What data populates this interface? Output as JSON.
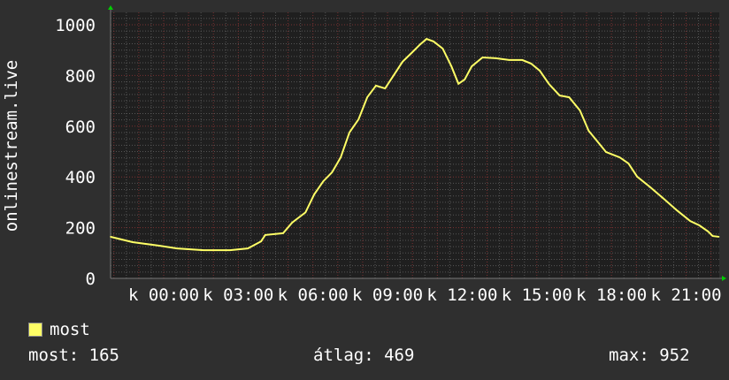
{
  "chart_data": {
    "type": "line",
    "ylabel": "onlinestream.live",
    "ylim": [
      0,
      1050
    ],
    "yticks": [
      0,
      200,
      400,
      600,
      800,
      1000
    ],
    "xlim": [
      "21:52",
      "22:20"
    ],
    "xticks": [
      {
        "time": "00:00",
        "label": "k 00:00"
      },
      {
        "time": "03:00",
        "label": "k 03:00"
      },
      {
        "time": "06:00",
        "label": "k 06:00"
      },
      {
        "time": "09:00",
        "label": "k 09:00"
      },
      {
        "time": "12:00",
        "label": "k 12:00"
      },
      {
        "time": "15:00",
        "label": "k 15:00"
      },
      {
        "time": "18:00",
        "label": "k 18:00"
      },
      {
        "time": "21:00",
        "label": "k 21:00"
      }
    ],
    "grid": true,
    "series": [
      {
        "name": "most",
        "color": "#ffff66",
        "points": [
          [
            "21:52",
            164
          ],
          [
            "22:45",
            143
          ],
          [
            "23:49",
            129
          ],
          [
            "00:32",
            118
          ],
          [
            "01:36",
            111
          ],
          [
            "02:40",
            111
          ],
          [
            "03:23",
            118
          ],
          [
            "03:55",
            146
          ],
          [
            "04:05",
            171
          ],
          [
            "04:48",
            178
          ],
          [
            "05:10",
            220
          ],
          [
            "05:42",
            260
          ],
          [
            "06:03",
            331
          ],
          [
            "06:25",
            383
          ],
          [
            "06:46",
            418
          ],
          [
            "07:07",
            477
          ],
          [
            "07:28",
            575
          ],
          [
            "07:50",
            627
          ],
          [
            "08:11",
            714
          ],
          [
            "08:32",
            760
          ],
          [
            "08:54",
            749
          ],
          [
            "09:15",
            801
          ],
          [
            "09:36",
            854
          ],
          [
            "09:58",
            889
          ],
          [
            "10:19",
            923
          ],
          [
            "10:34",
            944
          ],
          [
            "10:51",
            934
          ],
          [
            "11:13",
            906
          ],
          [
            "11:34",
            836
          ],
          [
            "11:51",
            767
          ],
          [
            "12:06",
            784
          ],
          [
            "12:23",
            836
          ],
          [
            "12:49",
            871
          ],
          [
            "13:21",
            868
          ],
          [
            "13:53",
            861
          ],
          [
            "14:25",
            861
          ],
          [
            "14:46",
            847
          ],
          [
            "15:07",
            819
          ],
          [
            "15:29",
            767
          ],
          [
            "15:55",
            721
          ],
          [
            "16:18",
            714
          ],
          [
            "16:44",
            662
          ],
          [
            "17:05",
            582
          ],
          [
            "17:26",
            540
          ],
          [
            "17:47",
            498
          ],
          [
            "18:20",
            477
          ],
          [
            "18:41",
            453
          ],
          [
            "19:02",
            401
          ],
          [
            "19:34",
            359
          ],
          [
            "20:06",
            314
          ],
          [
            "20:38",
            268
          ],
          [
            "21:10",
            226
          ],
          [
            "21:32",
            209
          ],
          [
            "21:53",
            185
          ],
          [
            "22:04",
            167
          ],
          [
            "22:19",
            164
          ]
        ]
      }
    ],
    "legend": {
      "label": "most",
      "color": "#ffff66",
      "placement": "bottom-left"
    },
    "stats": {
      "current": "most: 165",
      "average": "átlag: 469",
      "max": "max: 952"
    }
  }
}
